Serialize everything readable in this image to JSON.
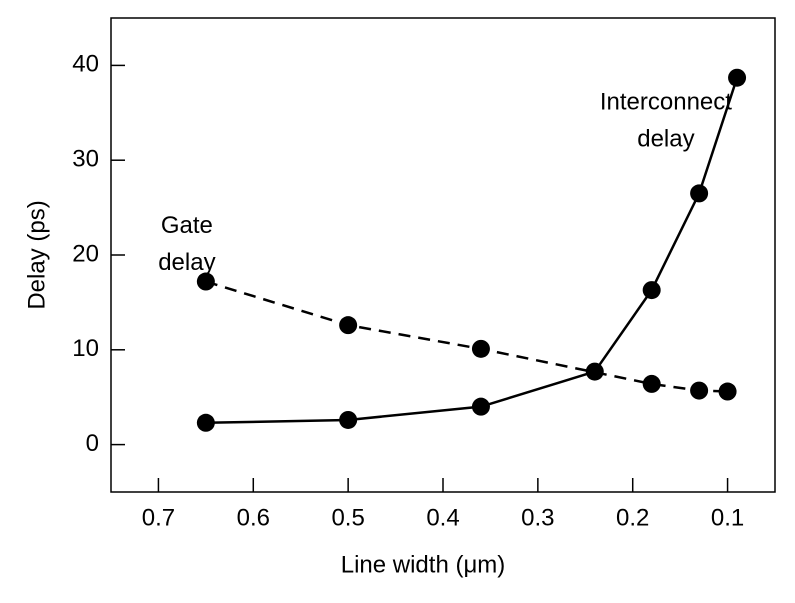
{
  "chart_data": {
    "type": "line",
    "xlabel": "Line width (μm)",
    "ylabel": "Delay (ps)",
    "xlim": [
      0.75,
      0.05
    ],
    "xticks": [
      0.7,
      0.6,
      0.5,
      0.4,
      0.3,
      0.2,
      0.1
    ],
    "ylim": [
      -5,
      45
    ],
    "yticks": [
      0,
      10,
      20,
      30,
      40
    ],
    "series": [
      {
        "color": "#000000",
        "dashed": true,
        "x": [
          0.65,
          0.5,
          0.36,
          0.18,
          0.13,
          0.1
        ],
        "values": [
          17.2,
          12.6,
          10.1,
          6.4,
          5.7,
          5.6
        ]
      },
      {
        "color": "#000000",
        "dashed": false,
        "x": [
          0.65,
          0.5,
          0.36,
          0.24,
          0.18,
          0.13,
          0.09
        ],
        "values": [
          2.3,
          2.6,
          4.0,
          7.7,
          16.3,
          26.5,
          38.7
        ]
      }
    ],
    "annotations": [
      {
        "lines": [
          "Gate",
          "delay"
        ],
        "x": 0.67,
        "y": 23
      },
      {
        "lines": [
          "Interconnect",
          "delay"
        ],
        "x": 0.165,
        "y": 36
      }
    ]
  }
}
